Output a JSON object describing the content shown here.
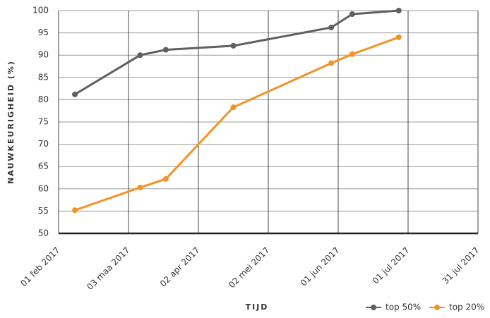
{
  "chart_data": {
    "type": "line",
    "x_label": "TIJD",
    "y_label": "NAUWKEURIGHEID (%)",
    "x": [
      "2017-02-08",
      "2017-03-08",
      "2017-03-19",
      "2017-04-17",
      "2017-05-29",
      "2017-06-07",
      "2017-06-27"
    ],
    "series": [
      {
        "name": "top 50%",
        "color": "#5f5f5f",
        "values": [
          81.2,
          90,
          91.2,
          92.1,
          96.2,
          99.2,
          100
        ]
      },
      {
        "name": "top 20%",
        "color": "#f39325",
        "values": [
          55.2,
          60.3,
          62.2,
          78.3,
          88.2,
          90.2,
          94
        ]
      }
    ],
    "xlim": [
      "2017-02-01",
      "2017-07-31"
    ],
    "xticks": [
      {
        "value": "2017-02-01",
        "label": "01 feb 2017"
      },
      {
        "value": "2017-03-03",
        "label": "03 maa 2017"
      },
      {
        "value": "2017-04-02",
        "label": "02 apr 2017"
      },
      {
        "value": "2017-05-02",
        "label": "02 mei 2017"
      },
      {
        "value": "2017-06-01",
        "label": "01 jun 2017"
      },
      {
        "value": "2017-07-01",
        "label": "01 jul 2017"
      },
      {
        "value": "2017-07-31",
        "label": "31 jul 2017"
      }
    ],
    "ylim": [
      50,
      100
    ],
    "yticks": [
      50,
      55,
      60,
      65,
      70,
      75,
      80,
      85,
      90,
      95,
      100
    ],
    "grid": true,
    "legend": "bottom-right"
  }
}
